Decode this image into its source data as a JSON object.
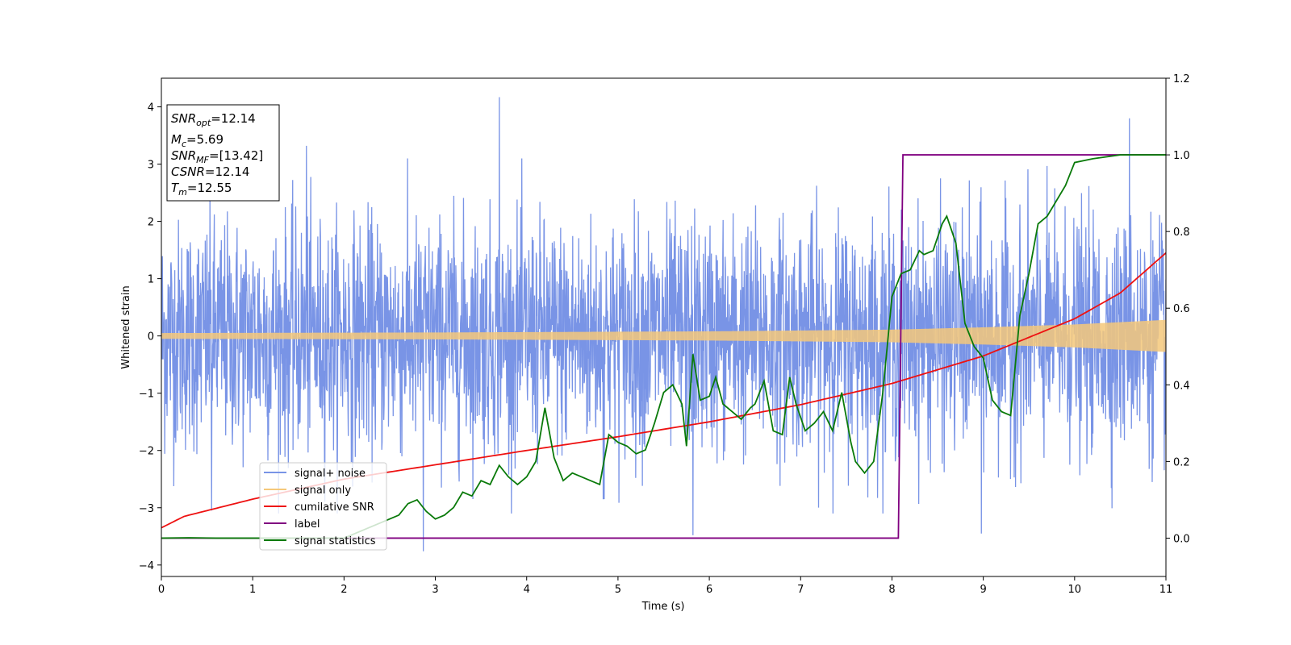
{
  "chart_data": {
    "type": "line",
    "xlabel": "Time (s)",
    "ylabel": "Whitened strain",
    "xlim": [
      0,
      11
    ],
    "ylim": [
      -4.2,
      4.5
    ],
    "y2lim": [
      -0.1,
      1.2
    ],
    "xticks": [
      0,
      1,
      2,
      3,
      4,
      5,
      6,
      7,
      8,
      9,
      10,
      11
    ],
    "yticks": [
      -4,
      -3,
      -2,
      -1,
      0,
      1,
      2,
      3,
      4
    ],
    "y2ticks": [
      0.0,
      0.2,
      0.4,
      0.6,
      0.8,
      1.0,
      1.2
    ],
    "grid": false,
    "legend_position": "lower-left",
    "info_box": {
      "position": "top-left",
      "lines": [
        {
          "base": "SNR",
          "sub": "opt",
          "rest": "=12.14"
        },
        {
          "base": "M",
          "sub": "c",
          "rest": "=5.69"
        },
        {
          "base": "SNR",
          "sub": "MF",
          "rest": "=[13.42]"
        },
        {
          "base": "CSNR",
          "sub": "",
          "rest": "=12.14"
        },
        {
          "base": "T",
          "sub": "m",
          "rest": "=12.55"
        }
      ]
    },
    "series": [
      {
        "name": "signal+ noise",
        "color": "#7994e6",
        "axis": "left",
        "style": "noise",
        "noise_amplitude": 1.0,
        "peaks": [
          [
            1.59,
            3.32
          ],
          [
            3.7,
            4.17
          ],
          [
            2.87,
            -3.76
          ],
          [
            5.82,
            -3.48
          ],
          [
            10.6,
            3.8
          ],
          [
            8.98,
            -3.45
          ],
          [
            0.55,
            -3.05
          ],
          [
            4.85,
            -2.85
          ]
        ]
      },
      {
        "name": "signal only",
        "color": "#f5c87a",
        "axis": "left",
        "style": "chirp",
        "amplitude_x": [
          0,
          3,
          6,
          8,
          9,
          10,
          11
        ],
        "amplitude_y": [
          0.05,
          0.06,
          0.08,
          0.11,
          0.15,
          0.2,
          0.28
        ]
      },
      {
        "name": "cumilative SNR",
        "color": "#ee1111",
        "axis": "left",
        "x": [
          0,
          0.25,
          0.5,
          1,
          2,
          3,
          4,
          5,
          6,
          7,
          8,
          9,
          10,
          10.5,
          11
        ],
        "y": [
          -3.35,
          -3.15,
          -3.05,
          -2.85,
          -2.5,
          -2.25,
          -2.0,
          -1.76,
          -1.5,
          -1.2,
          -0.83,
          -0.35,
          0.3,
          0.75,
          1.45
        ]
      },
      {
        "name": "label",
        "color": "#800080",
        "axis": "right",
        "x": [
          0,
          8.07,
          8.12,
          11
        ],
        "y": [
          0.0,
          0.0,
          1.0,
          1.0
        ]
      },
      {
        "name": "signal statistics",
        "color": "#0a7a0a",
        "axis": "right",
        "x": [
          0,
          0.3,
          0.6,
          1,
          1.5,
          2,
          2.2,
          2.3,
          2.4,
          2.5,
          2.6,
          2.7,
          2.8,
          2.9,
          3.0,
          3.1,
          3.2,
          3.3,
          3.4,
          3.5,
          3.6,
          3.7,
          3.8,
          3.9,
          4.0,
          4.1,
          4.2,
          4.3,
          4.4,
          4.5,
          4.6,
          4.7,
          4.8,
          4.9,
          5.0,
          5.1,
          5.2,
          5.3,
          5.4,
          5.5,
          5.6,
          5.7,
          5.75,
          5.82,
          5.9,
          6.0,
          6.07,
          6.15,
          6.25,
          6.35,
          6.45,
          6.5,
          6.6,
          6.7,
          6.8,
          6.88,
          6.95,
          7.05,
          7.15,
          7.25,
          7.35,
          7.45,
          7.55,
          7.6,
          7.7,
          7.8,
          7.9,
          8.0,
          8.1,
          8.2,
          8.3,
          8.35,
          8.45,
          8.55,
          8.6,
          8.7,
          8.8,
          8.9,
          9.0,
          9.1,
          9.2,
          9.3,
          9.4,
          9.5,
          9.6,
          9.7,
          9.8,
          9.9,
          10.0,
          10.2,
          10.5,
          11
        ],
        "y": [
          0.0,
          0.001,
          0.0,
          0.0,
          0.0,
          0.0,
          0.02,
          0.03,
          0.04,
          0.05,
          0.06,
          0.09,
          0.1,
          0.07,
          0.05,
          0.06,
          0.08,
          0.12,
          0.11,
          0.15,
          0.14,
          0.19,
          0.16,
          0.14,
          0.16,
          0.2,
          0.34,
          0.21,
          0.15,
          0.17,
          0.16,
          0.15,
          0.14,
          0.27,
          0.25,
          0.24,
          0.22,
          0.23,
          0.3,
          0.38,
          0.4,
          0.35,
          0.24,
          0.48,
          0.36,
          0.37,
          0.42,
          0.35,
          0.33,
          0.31,
          0.34,
          0.35,
          0.41,
          0.28,
          0.27,
          0.42,
          0.35,
          0.28,
          0.3,
          0.33,
          0.28,
          0.38,
          0.25,
          0.2,
          0.17,
          0.2,
          0.38,
          0.63,
          0.69,
          0.7,
          0.75,
          0.74,
          0.75,
          0.82,
          0.84,
          0.77,
          0.56,
          0.5,
          0.47,
          0.36,
          0.33,
          0.32,
          0.58,
          0.69,
          0.82,
          0.84,
          0.88,
          0.92,
          0.98,
          0.99,
          1.0,
          1.0
        ]
      }
    ]
  }
}
